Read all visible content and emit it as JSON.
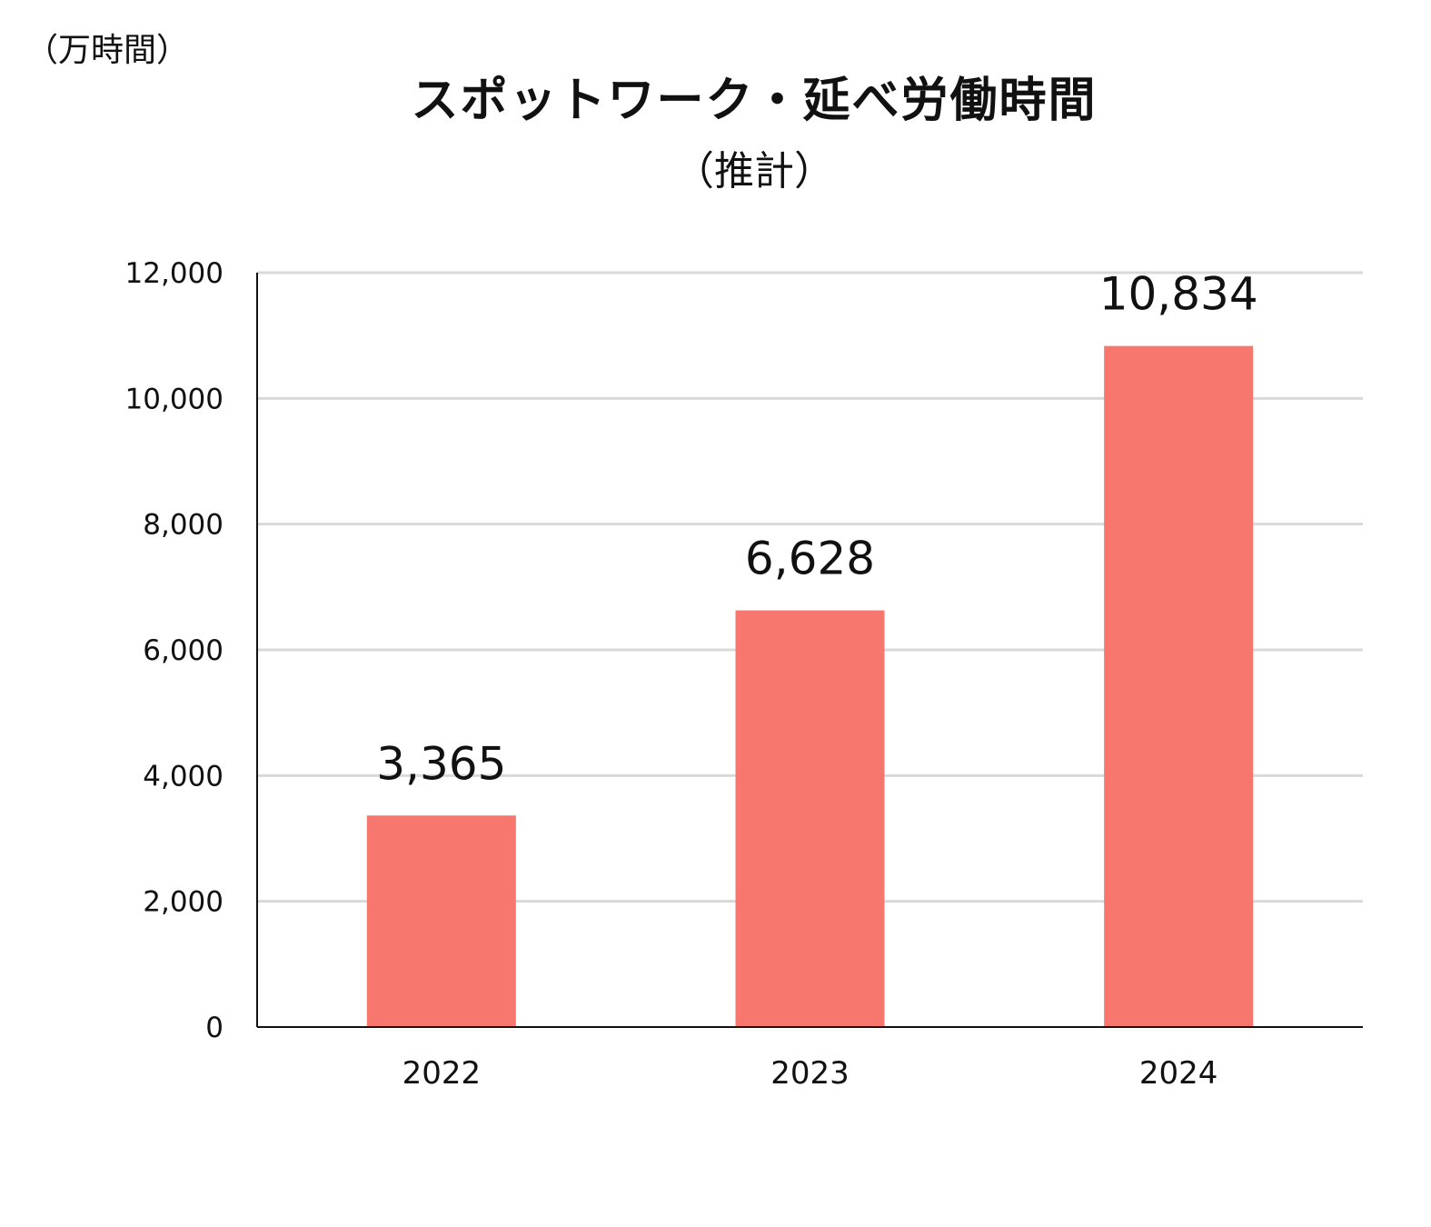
{
  "chart_data": {
    "type": "bar",
    "title": "スポットワーク・延べ労働時間",
    "subtitle": "（推計）",
    "unit_label": "（万時間）",
    "categories": [
      "2022",
      "2023",
      "2024"
    ],
    "values": [
      3365,
      6628,
      10834
    ],
    "data_labels": [
      "3,365",
      "6,628",
      "10,834"
    ],
    "ylim": [
      0,
      12000
    ],
    "yticks": [
      0,
      2000,
      4000,
      6000,
      8000,
      10000,
      12000
    ],
    "ytick_labels": [
      "0",
      "2,000",
      "4,000",
      "6,000",
      "8,000",
      "10,000",
      "12,000"
    ],
    "grid": true,
    "bar_color": "#f7776f",
    "grid_color": "#d9d9d9",
    "axis_color": "#111111"
  }
}
